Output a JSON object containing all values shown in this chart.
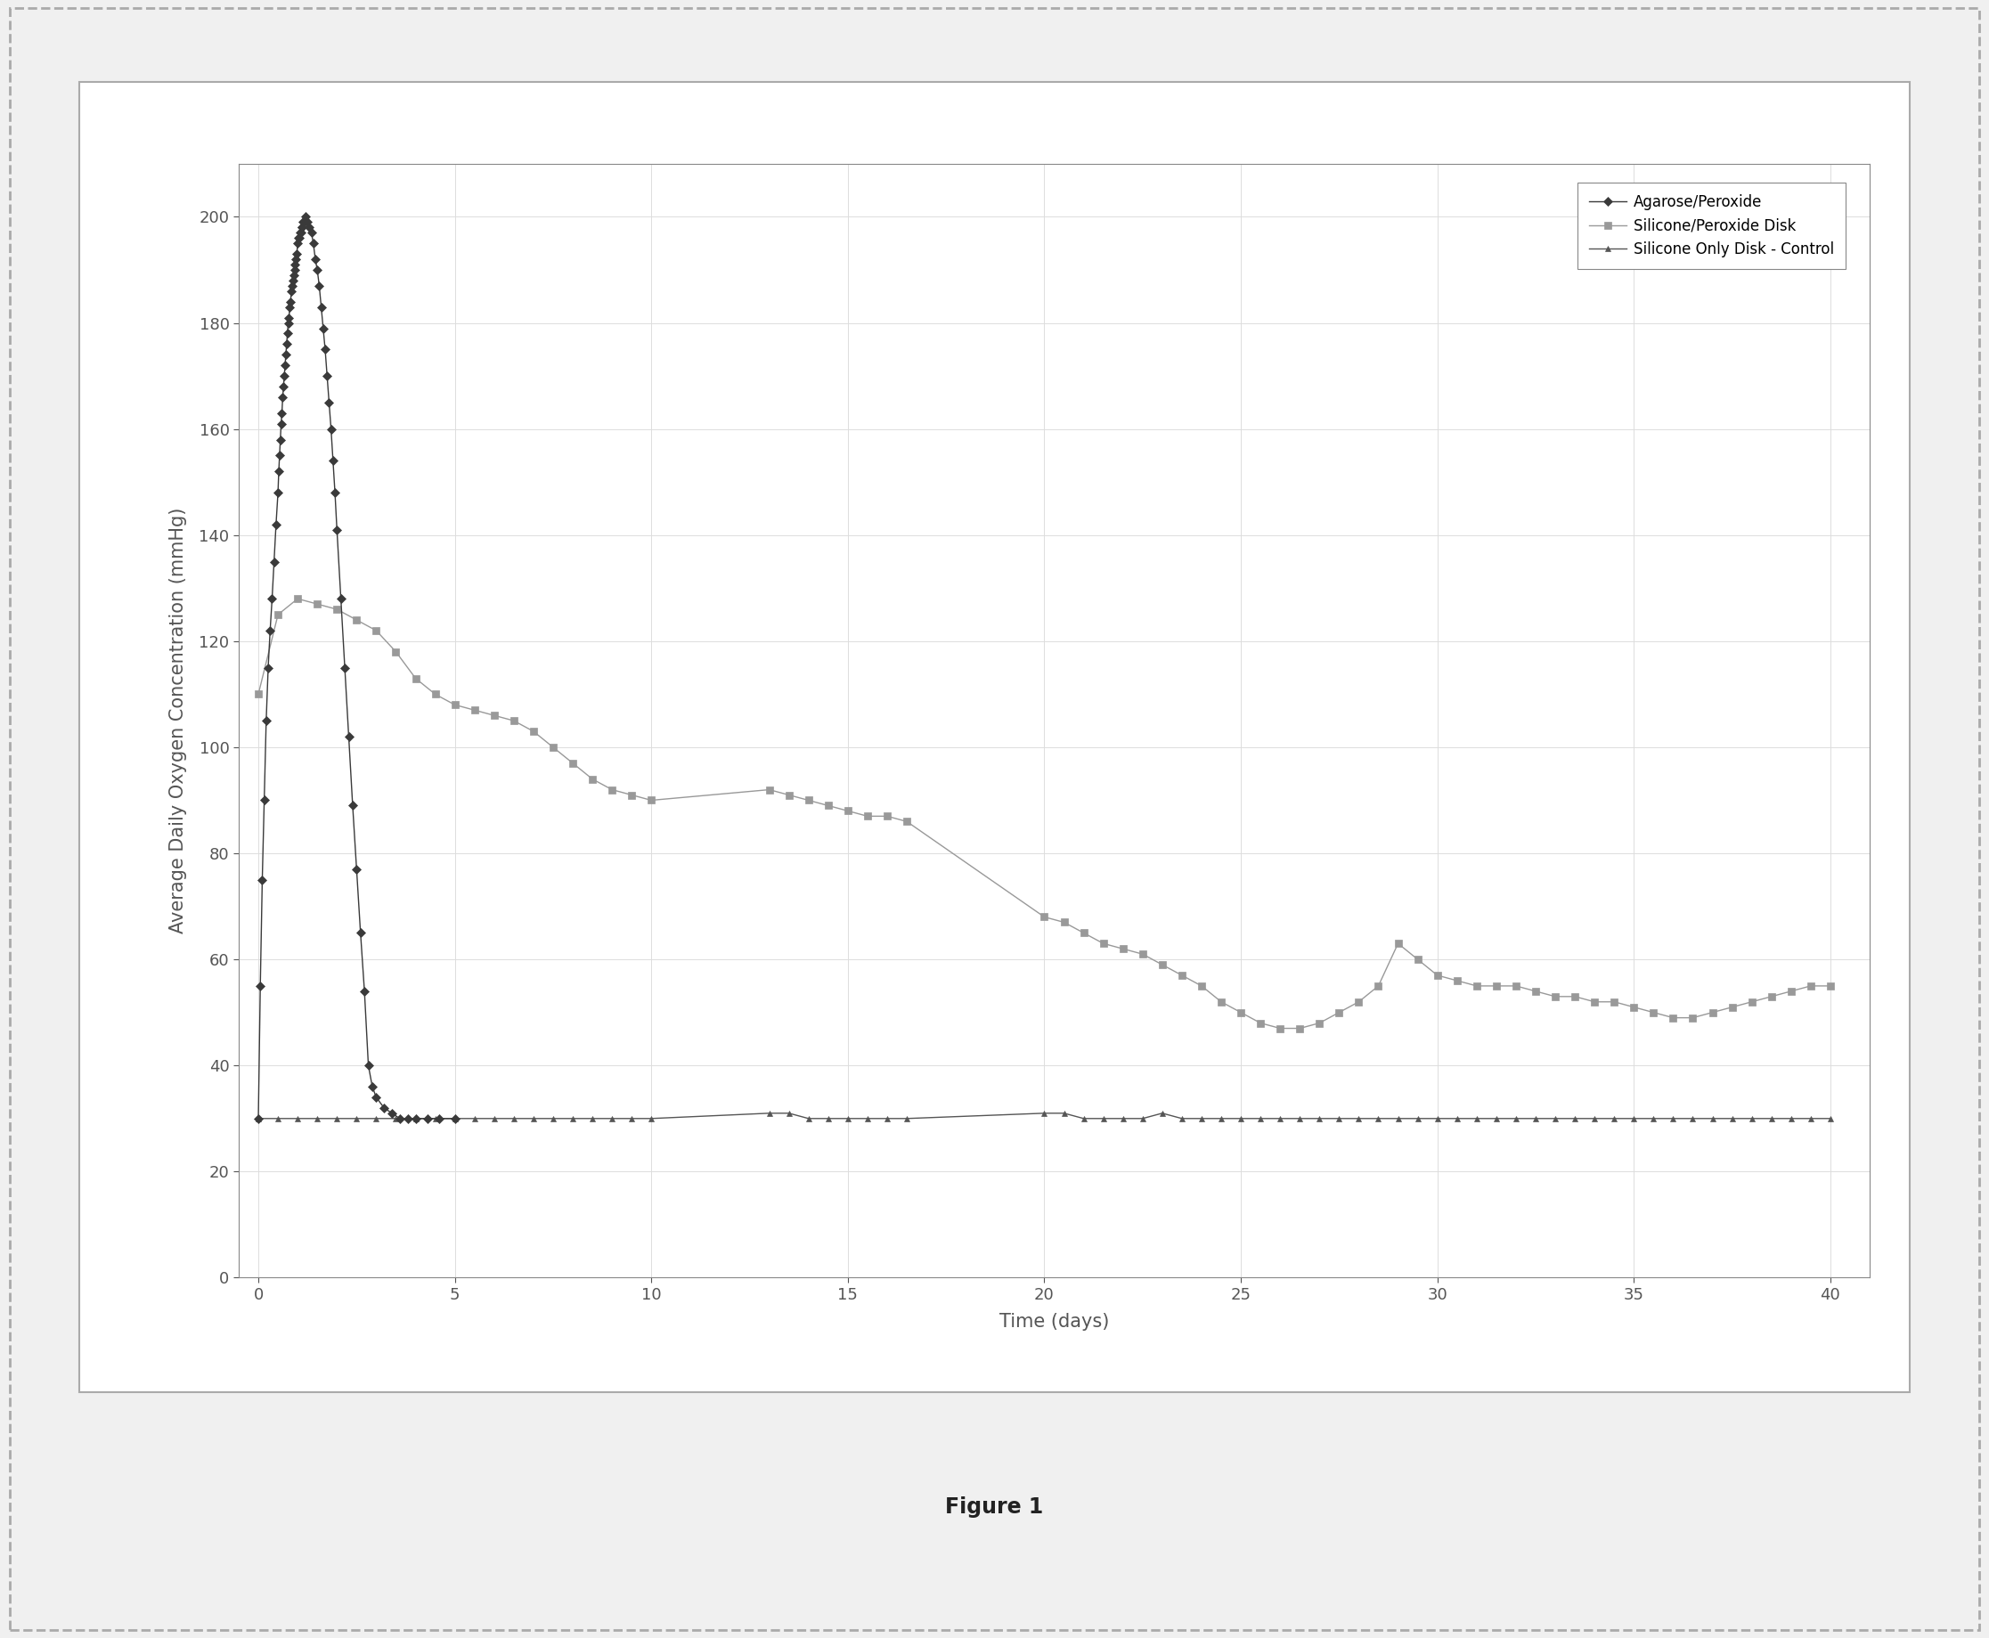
{
  "title": "Figure 1",
  "xlabel": "Time (days)",
  "ylabel": "Average Daily Oxygen Concentration (mmHg)",
  "xlim": [
    -0.5,
    41
  ],
  "ylim": [
    0,
    210
  ],
  "yticks": [
    0,
    20,
    40,
    60,
    80,
    100,
    120,
    140,
    160,
    180,
    200
  ],
  "xticks": [
    0,
    5,
    10,
    15,
    20,
    25,
    30,
    35,
    40
  ],
  "legend_labels": [
    "Agarose/Peroxide",
    "Silicone/Peroxide Disk",
    "Silicone Only Disk - Control"
  ],
  "series1_color": "#3a3a3a",
  "series2_color": "#999999",
  "series3_color": "#555555",
  "agarose_x": [
    0.0,
    0.05,
    0.1,
    0.15,
    0.2,
    0.25,
    0.3,
    0.35,
    0.4,
    0.45,
    0.5,
    0.52,
    0.54,
    0.56,
    0.58,
    0.6,
    0.62,
    0.64,
    0.66,
    0.68,
    0.7,
    0.72,
    0.74,
    0.76,
    0.78,
    0.8,
    0.82,
    0.84,
    0.86,
    0.88,
    0.9,
    0.92,
    0.94,
    0.96,
    0.98,
    1.0,
    1.02,
    1.04,
    1.06,
    1.08,
    1.1,
    1.12,
    1.14,
    1.16,
    1.18,
    1.2,
    1.25,
    1.3,
    1.35,
    1.4,
    1.45,
    1.5,
    1.55,
    1.6,
    1.65,
    1.7,
    1.75,
    1.8,
    1.85,
    1.9,
    1.95,
    2.0,
    2.1,
    2.2,
    2.3,
    2.4,
    2.5,
    2.6,
    2.7,
    2.8,
    2.9,
    3.0,
    3.2,
    3.4,
    3.6,
    3.8,
    4.0,
    4.3,
    4.6,
    5.0
  ],
  "agarose_y": [
    30,
    55,
    75,
    90,
    105,
    115,
    122,
    128,
    135,
    142,
    148,
    152,
    155,
    158,
    161,
    163,
    166,
    168,
    170,
    172,
    174,
    176,
    178,
    180,
    181,
    183,
    184,
    186,
    187,
    188,
    189,
    190,
    191,
    192,
    193,
    195,
    196,
    196,
    197,
    197,
    198,
    198,
    199,
    199,
    199,
    200,
    199,
    198,
    197,
    195,
    192,
    190,
    187,
    183,
    179,
    175,
    170,
    165,
    160,
    154,
    148,
    141,
    128,
    115,
    102,
    89,
    77,
    65,
    54,
    40,
    36,
    34,
    32,
    31,
    30,
    30,
    30,
    30,
    30,
    30
  ],
  "silicone_peroxide_x": [
    0.0,
    0.5,
    1.0,
    1.5,
    2.0,
    2.5,
    3.0,
    3.5,
    4.0,
    4.5,
    5.0,
    5.5,
    6.0,
    6.5,
    7.0,
    7.5,
    8.0,
    8.5,
    9.0,
    9.5,
    10.0,
    13.0,
    13.5,
    14.0,
    14.5,
    15.0,
    15.5,
    16.0,
    16.5,
    20.0,
    20.5,
    21.0,
    21.5,
    22.0,
    22.5,
    23.0,
    23.5,
    24.0,
    24.5,
    25.0,
    25.5,
    26.0,
    26.5,
    27.0,
    27.5,
    28.0,
    28.5,
    29.0,
    29.5,
    30.0,
    30.5,
    31.0,
    31.5,
    32.0,
    32.5,
    33.0,
    33.5,
    34.0,
    34.5,
    35.0,
    35.5,
    36.0,
    36.5,
    37.0,
    37.5,
    38.0,
    38.5,
    39.0,
    39.5,
    40.0
  ],
  "silicone_peroxide_y": [
    110,
    125,
    128,
    127,
    126,
    124,
    122,
    118,
    113,
    110,
    108,
    107,
    106,
    105,
    103,
    100,
    97,
    94,
    92,
    91,
    90,
    92,
    91,
    90,
    89,
    88,
    87,
    87,
    86,
    68,
    67,
    65,
    63,
    62,
    61,
    59,
    57,
    55,
    52,
    50,
    48,
    47,
    47,
    48,
    50,
    52,
    55,
    63,
    60,
    57,
    56,
    55,
    55,
    55,
    54,
    53,
    53,
    52,
    52,
    51,
    50,
    49,
    49,
    50,
    51,
    52,
    53,
    54,
    55,
    55
  ],
  "control_x": [
    0.0,
    0.5,
    1.0,
    1.5,
    2.0,
    2.5,
    3.0,
    3.5,
    4.0,
    4.5,
    5.0,
    5.5,
    6.0,
    6.5,
    7.0,
    7.5,
    8.0,
    8.5,
    9.0,
    9.5,
    10.0,
    13.0,
    13.5,
    14.0,
    14.5,
    15.0,
    15.5,
    16.0,
    16.5,
    20.0,
    20.5,
    21.0,
    21.5,
    22.0,
    22.5,
    23.0,
    23.5,
    24.0,
    24.5,
    25.0,
    25.5,
    26.0,
    26.5,
    27.0,
    27.5,
    28.0,
    28.5,
    29.0,
    29.5,
    30.0,
    30.5,
    31.0,
    31.5,
    32.0,
    32.5,
    33.0,
    33.5,
    34.0,
    34.5,
    35.0,
    35.5,
    36.0,
    36.5,
    37.0,
    37.5,
    38.0,
    38.5,
    39.0,
    39.5,
    40.0
  ],
  "control_y": [
    30,
    30,
    30,
    30,
    30,
    30,
    30,
    30,
    30,
    30,
    30,
    30,
    30,
    30,
    30,
    30,
    30,
    30,
    30,
    30,
    30,
    31,
    31,
    30,
    30,
    30,
    30,
    30,
    30,
    31,
    31,
    30,
    30,
    30,
    30,
    31,
    30,
    30,
    30,
    30,
    30,
    30,
    30,
    30,
    30,
    30,
    30,
    30,
    30,
    30,
    30,
    30,
    30,
    30,
    30,
    30,
    30,
    30,
    30,
    30,
    30,
    30,
    30,
    30,
    30,
    30,
    30,
    30,
    30,
    30
  ],
  "figure_bg": "#f0f0f0",
  "plot_bg": "#ffffff",
  "border_color": "#aaaaaa",
  "grid_color": "#dddddd",
  "tick_color": "#555555",
  "spine_color": "#888888"
}
